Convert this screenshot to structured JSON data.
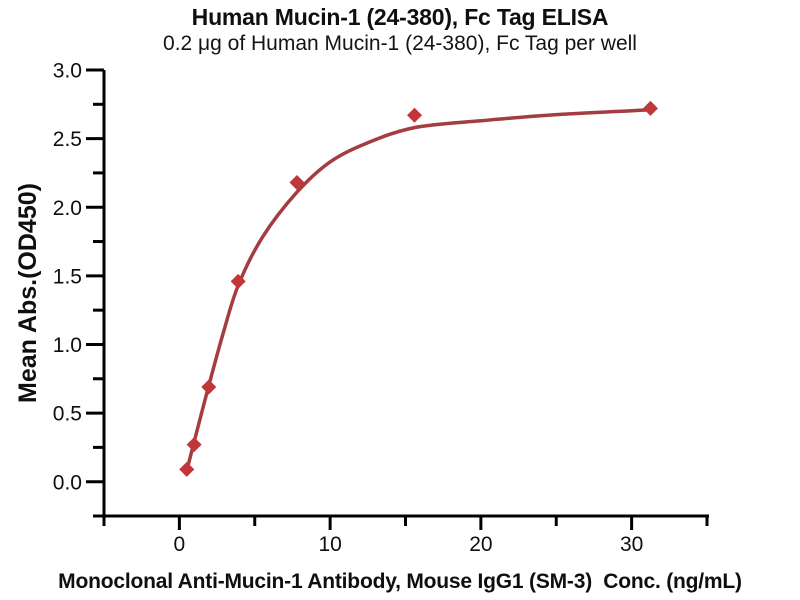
{
  "figure": {
    "title": "Human Mucin-1 (24-380), Fc Tag ELISA",
    "subtitle": "0.2 μg of Human Mucin-1 (24-380), Fc Tag per well"
  },
  "chart_data": {
    "type": "scatter",
    "title": "Human Mucin-1 (24-380), Fc Tag ELISA",
    "subtitle": "0.2 μg of Human Mucin-1 (24-380), Fc Tag per well",
    "xlabel": "Monoclonal Anti-Mucin-1 Antibody, Mouse IgG1 (SM-3)  Conc. (ng/mL)",
    "ylabel": "Mean Abs.(OD450)",
    "series": [
      {
        "name": "Human Mucin-1 (24-380), Fc Tag",
        "x": [
          0.49,
          0.98,
          1.95,
          3.9,
          7.8,
          15.6,
          31.25
        ],
        "y": [
          0.09,
          0.27,
          0.69,
          1.46,
          2.18,
          2.67,
          2.72
        ]
      }
    ],
    "fit_curve_anchors": [
      [
        0.49,
        0.08
      ],
      [
        0.98,
        0.29
      ],
      [
        1.95,
        0.7
      ],
      [
        2.9,
        1.08
      ],
      [
        3.9,
        1.43
      ],
      [
        5.5,
        1.78
      ],
      [
        7.8,
        2.11
      ],
      [
        10.0,
        2.33
      ],
      [
        12.5,
        2.47
      ],
      [
        15.6,
        2.58
      ],
      [
        20.0,
        2.63
      ],
      [
        25.0,
        2.675
      ],
      [
        31.25,
        2.71
      ]
    ],
    "xlim": [
      -5,
      35
    ],
    "ylim": [
      -0.25,
      3.0
    ],
    "x_major_ticks": [
      0,
      10,
      20,
      30
    ],
    "x_minor_ticks": [
      -5,
      5,
      15,
      25,
      35
    ],
    "y_major_ticks": [
      0.0,
      0.5,
      1.0,
      1.5,
      2.0,
      2.5,
      3.0
    ],
    "y_minor_ticks": [
      -0.25,
      0.25,
      0.75,
      1.25,
      1.75,
      2.25,
      2.75
    ],
    "grid": false,
    "legend": "none",
    "marker": "diamond",
    "colors": {
      "curve": "#a43d3f",
      "marker": "#c13638",
      "axis": "#000000",
      "text": "#0f0f0f"
    }
  }
}
